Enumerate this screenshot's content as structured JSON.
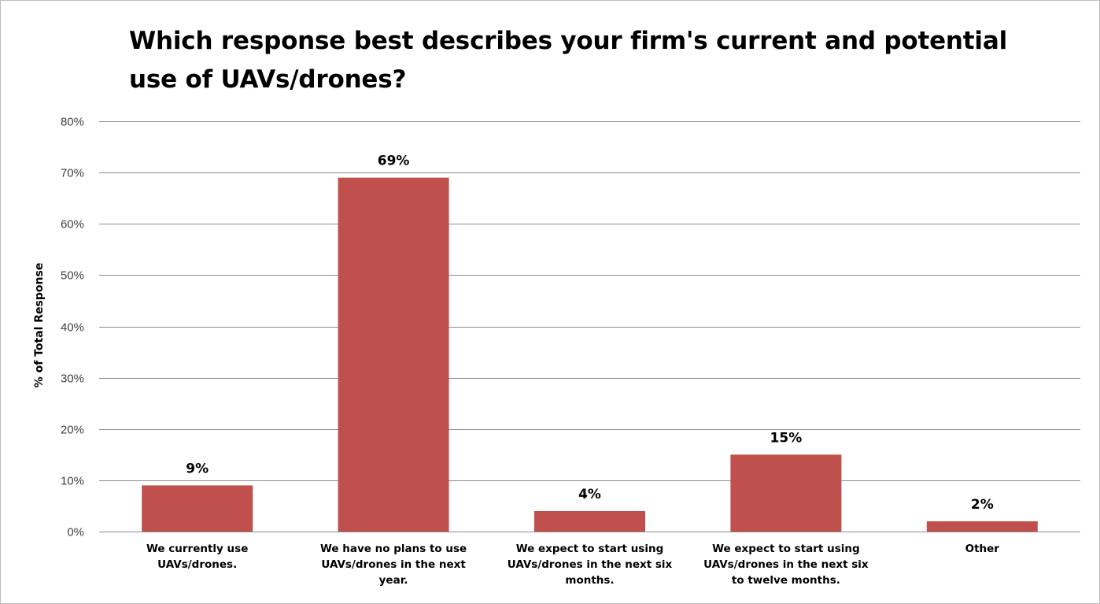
{
  "chart_data": {
    "type": "bar",
    "title_lines": [
      "Which response best describes your firm's current and potential",
      "use of UAVs/drones?"
    ],
    "ylabel": "% of Total Response",
    "ylim": [
      0,
      80
    ],
    "yticks": [
      "0%",
      "10%",
      "20%",
      "30%",
      "40%",
      "50%",
      "60%",
      "70%",
      "80%"
    ],
    "ytick_values": [
      0,
      10,
      20,
      30,
      40,
      50,
      60,
      70,
      80
    ],
    "grid": true,
    "legend": "none",
    "bar_color": "#c0504d",
    "gridline_color": "#8c8c8c",
    "categories": [
      [
        "We currently use",
        "UAVs/drones."
      ],
      [
        "We have no plans to use",
        "UAVs/drones in the next",
        "year."
      ],
      [
        "We expect to start using",
        "UAVs/drones in the next six",
        "months."
      ],
      [
        "We expect to start using",
        "UAVs/drones in the next six",
        "to twelve months."
      ],
      [
        "Other"
      ]
    ],
    "values": [
      9,
      69,
      4,
      15,
      2
    ],
    "data_labels": [
      "9%",
      "69%",
      "4%",
      "15%",
      "2%"
    ]
  }
}
